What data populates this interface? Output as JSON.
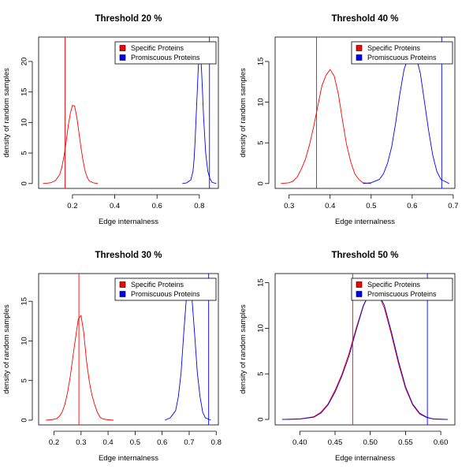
{
  "figure": {},
  "chart_data": [
    {
      "type": "line",
      "title": "Threshold 20 %",
      "xlabel": "Edge internalness",
      "ylabel": "density of random samples",
      "xlim": [
        0.04,
        0.89
      ],
      "ylim": [
        -0.8,
        24
      ],
      "xticks": [
        0.2,
        0.4,
        0.6,
        0.8
      ],
      "xtick_labels": [
        "0.2",
        "0.4",
        "0.6",
        "0.8"
      ],
      "yticks": [
        0,
        5,
        10,
        15,
        20
      ],
      "ytick_labels": [
        "0",
        "5",
        "10",
        "15",
        "20"
      ],
      "legend": {
        "position": "top-right",
        "entries": [
          "Specific Proteins",
          "Promiscuous Proteins"
        ]
      },
      "vlines": [
        {
          "x": 0.165,
          "color": "#ff0000"
        },
        {
          "x": 0.848,
          "color": "#0000ff"
        }
      ],
      "series": [
        {
          "name": "Specific Proteins",
          "color": "#ff0000",
          "x": [
            0.06,
            0.08,
            0.1,
            0.12,
            0.14,
            0.15,
            0.16,
            0.17,
            0.18,
            0.19,
            0.2,
            0.21,
            0.22,
            0.23,
            0.24,
            0.25,
            0.26,
            0.27,
            0.28,
            0.3,
            0.32
          ],
          "y": [
            0,
            0.05,
            0.15,
            0.5,
            1.5,
            2.7,
            4.5,
            6.8,
            9.5,
            11.5,
            12.8,
            12.7,
            11.0,
            8.5,
            6.0,
            3.8,
            2.0,
            1.0,
            0.4,
            0.1,
            0
          ]
        },
        {
          "name": "Promiscuous Proteins",
          "color": "#0000ff",
          "x": [
            0.72,
            0.74,
            0.76,
            0.77,
            0.775,
            0.78,
            0.785,
            0.79,
            0.795,
            0.8,
            0.805,
            0.81,
            0.815,
            0.82,
            0.83,
            0.84,
            0.85,
            0.86,
            0.88
          ],
          "y": [
            0,
            0.1,
            0.6,
            2.0,
            4.0,
            7.0,
            11.0,
            15.0,
            19.0,
            21.0,
            21.0,
            19.0,
            15.0,
            11.0,
            5.0,
            2.0,
            0.8,
            0.2,
            0
          ]
        }
      ]
    },
    {
      "type": "line",
      "title": "Threshold 40 %",
      "xlabel": "Edge internalness",
      "ylabel": "density of random samples",
      "xlim": [
        0.266,
        0.704
      ],
      "ylim": [
        -0.6,
        18
      ],
      "xticks": [
        0.3,
        0.4,
        0.5,
        0.6,
        0.7
      ],
      "xtick_labels": [
        "0.3",
        "0.4",
        "0.5",
        "0.6",
        "0.7"
      ],
      "yticks": [
        0,
        5,
        10,
        15
      ],
      "ytick_labels": [
        "0",
        "5",
        "10",
        "15"
      ],
      "legend": {
        "position": "top-right",
        "entries": [
          "Specific Proteins",
          "Promiscuous Proteins"
        ]
      },
      "vlines": [
        {
          "x": 0.367,
          "color": "#ff0000"
        },
        {
          "x": 0.672,
          "color": "#0000ff"
        }
      ],
      "series": [
        {
          "name": "Specific Proteins",
          "color": "#ff0000",
          "x": [
            0.28,
            0.3,
            0.31,
            0.32,
            0.33,
            0.34,
            0.35,
            0.36,
            0.37,
            0.38,
            0.39,
            0.4,
            0.41,
            0.42,
            0.43,
            0.44,
            0.45,
            0.46,
            0.47,
            0.48,
            0.5
          ],
          "y": [
            0,
            0.1,
            0.3,
            0.8,
            1.8,
            3.0,
            4.8,
            7.0,
            9.5,
            12.0,
            13.3,
            14.0,
            13.2,
            11.0,
            7.8,
            4.8,
            2.7,
            1.2,
            0.5,
            0.1,
            0
          ]
        },
        {
          "name": "Promiscuous Proteins",
          "color": "#0000ff",
          "x": [
            0.48,
            0.5,
            0.52,
            0.53,
            0.54,
            0.55,
            0.56,
            0.57,
            0.58,
            0.59,
            0.6,
            0.61,
            0.62,
            0.63,
            0.64,
            0.65,
            0.66,
            0.67,
            0.69
          ],
          "y": [
            0,
            0.1,
            0.5,
            1.2,
            2.5,
            4.5,
            7.5,
            11.0,
            14.0,
            15.5,
            16.0,
            15.5,
            13.5,
            10.0,
            6.5,
            3.5,
            1.5,
            0.5,
            0
          ]
        }
      ]
    },
    {
      "type": "line",
      "title": "Threshold 30 %",
      "xlabel": "Edge internalness",
      "ylabel": "density of random samples",
      "xlim": [
        0.143,
        0.808
      ],
      "ylim": [
        -0.6,
        18.5
      ],
      "xticks": [
        0.2,
        0.3,
        0.4,
        0.5,
        0.6,
        0.7,
        0.8
      ],
      "xtick_labels": [
        "0.2",
        "0.3",
        "0.4",
        "0.5",
        "0.6",
        "0.7",
        "0.8"
      ],
      "yticks": [
        0,
        5,
        10,
        15
      ],
      "ytick_labels": [
        "0",
        "5",
        "10",
        "15"
      ],
      "legend": {
        "position": "top-right",
        "entries": [
          "Specific Proteins",
          "Promiscuous Proteins"
        ]
      },
      "vlines": [
        {
          "x": 0.292,
          "color": "#ff0000"
        },
        {
          "x": 0.772,
          "color": "#0000ff"
        }
      ],
      "series": [
        {
          "name": "Specific Proteins",
          "color": "#ff0000",
          "x": [
            0.17,
            0.19,
            0.21,
            0.22,
            0.23,
            0.24,
            0.25,
            0.26,
            0.27,
            0.28,
            0.29,
            0.3,
            0.31,
            0.32,
            0.33,
            0.34,
            0.35,
            0.36,
            0.37,
            0.38,
            0.4,
            0.42
          ],
          "y": [
            0,
            0.05,
            0.2,
            0.5,
            1.0,
            2.0,
            3.5,
            5.5,
            8.0,
            10.5,
            12.8,
            13.2,
            11.0,
            7.5,
            5.0,
            3.2,
            2.0,
            1.0,
            0.4,
            0.15,
            0.05,
            0
          ]
        },
        {
          "name": "Promiscuous Proteins",
          "color": "#0000ff",
          "x": [
            0.61,
            0.63,
            0.65,
            0.66,
            0.67,
            0.68,
            0.69,
            0.7,
            0.71,
            0.72,
            0.73,
            0.74,
            0.75,
            0.76,
            0.78
          ],
          "y": [
            0,
            0.3,
            1.2,
            3.0,
            6.0,
            11.0,
            15.5,
            17.0,
            15.5,
            11.0,
            6.0,
            3.0,
            1.0,
            0.3,
            0
          ]
        }
      ]
    },
    {
      "type": "line",
      "title": "Threshold 50 %",
      "xlabel": "Edge internalness",
      "ylabel": "density of random samples",
      "xlim": [
        0.365,
        0.62
      ],
      "ylim": [
        -0.6,
        16
      ],
      "xticks": [
        0.4,
        0.45,
        0.5,
        0.55,
        0.6
      ],
      "xtick_labels": [
        "0.40",
        "0.45",
        "0.50",
        "0.55",
        "0.60"
      ],
      "yticks": [
        0,
        5,
        10,
        15
      ],
      "ytick_labels": [
        "0",
        "5",
        "10",
        "15"
      ],
      "legend": {
        "position": "top-right",
        "entries": [
          "Specific Proteins",
          "Promiscuous Proteins"
        ]
      },
      "vlines": [
        {
          "x": 0.475,
          "color": "#ff0000"
        },
        {
          "x": 0.581,
          "color": "#0000ff"
        }
      ],
      "series": [
        {
          "name": "Specific Proteins",
          "color": "#ff0000",
          "x": [
            0.375,
            0.4,
            0.42,
            0.43,
            0.44,
            0.45,
            0.46,
            0.47,
            0.48,
            0.49,
            0.5,
            0.51,
            0.52,
            0.53,
            0.54,
            0.55,
            0.56,
            0.57,
            0.58,
            0.59,
            0.61
          ],
          "y": [
            0,
            0.05,
            0.3,
            0.8,
            1.7,
            3.2,
            5.0,
            7.3,
            10.0,
            12.5,
            14.0,
            14.0,
            12.2,
            9.3,
            6.1,
            3.4,
            1.6,
            0.6,
            0.2,
            0.05,
            0
          ]
        },
        {
          "name": "Promiscuous Proteins",
          "color": "#0000ff",
          "x": [
            0.375,
            0.4,
            0.42,
            0.43,
            0.44,
            0.45,
            0.46,
            0.47,
            0.48,
            0.49,
            0.5,
            0.51,
            0.52,
            0.53,
            0.54,
            0.55,
            0.56,
            0.57,
            0.58,
            0.59,
            0.61
          ],
          "y": [
            0,
            0.05,
            0.25,
            0.7,
            1.6,
            3.0,
            4.8,
            7.0,
            9.8,
            12.4,
            14.1,
            14.1,
            12.5,
            9.6,
            6.4,
            3.6,
            1.7,
            0.7,
            0.25,
            0.05,
            0
          ]
        }
      ]
    }
  ]
}
